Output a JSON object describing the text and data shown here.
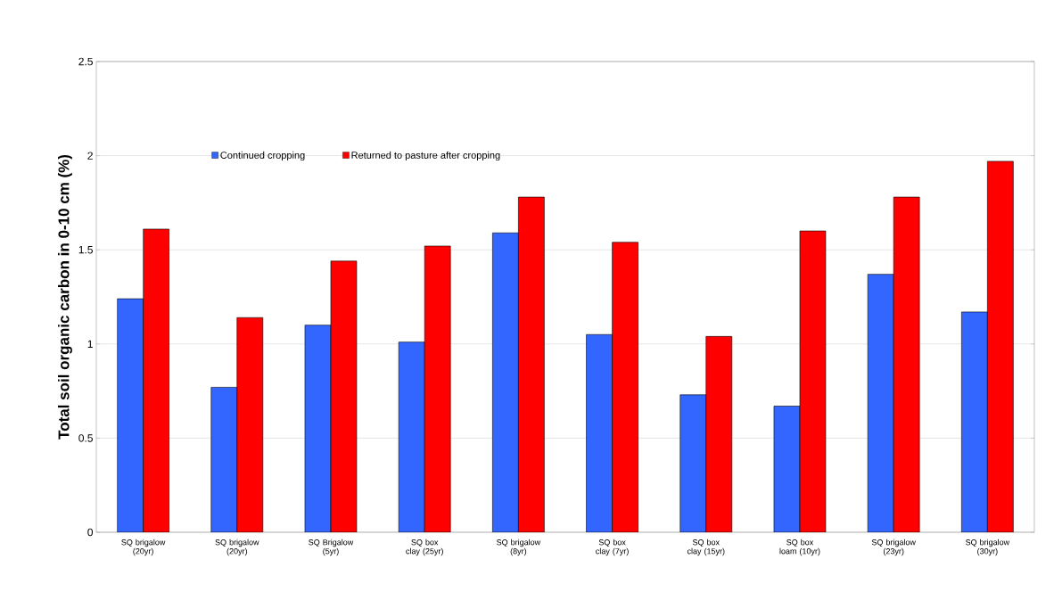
{
  "chart_data": {
    "type": "bar",
    "ylabel": "Total soil organic carbon in 0-10 cm (%)",
    "categories": [
      "SQ brigalow (20yr)",
      "SQ brigalow (20yr)",
      "SQ Brigalow (5yr)",
      "SQ box clay (25yr)",
      "SQ brigalow (8yr)",
      "SQ box clay (7yr)",
      "SQ box clay (15yr)",
      "SQ box loam (10yr)",
      "SQ brigalow (23yr)",
      "SQ brigalow (30yr)"
    ],
    "series": [
      {
        "name": "Continued cropping",
        "color": "#3366ff",
        "values": [
          1.24,
          0.77,
          1.1,
          1.01,
          1.59,
          1.05,
          0.73,
          0.67,
          1.37,
          1.17
        ]
      },
      {
        "name": "Returned to pasture after cropping",
        "color": "#ff0000",
        "values": [
          1.61,
          1.14,
          1.44,
          1.52,
          1.78,
          1.54,
          1.04,
          1.6,
          1.78,
          1.97
        ]
      }
    ],
    "ylim": [
      0,
      2.5
    ],
    "yticks": [
      0,
      0.5,
      1,
      1.5,
      2,
      2.5
    ],
    "grid": "y",
    "legend": "top left"
  }
}
